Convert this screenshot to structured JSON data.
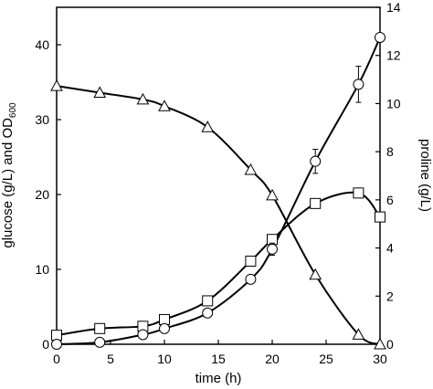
{
  "chart_data": {
    "type": "line",
    "x": [
      0,
      4,
      8,
      10,
      14,
      18,
      20,
      24,
      28,
      30
    ],
    "xlabel": "time (h)",
    "xlim": [
      0,
      30
    ],
    "xticks": [
      0,
      5,
      10,
      15,
      20,
      25,
      30
    ],
    "ylabel_left_main": "glucose (g/L) and OD",
    "ylabel_left_sub": "600",
    "ylim_left": [
      0,
      45
    ],
    "yticks_left": [
      0,
      10,
      20,
      30,
      40
    ],
    "ylabel_right": "proline (g/L)",
    "ylim_right": [
      0,
      14
    ],
    "yticks_right": [
      0,
      2,
      4,
      6,
      8,
      10,
      12,
      14
    ],
    "grid": false,
    "legend": "none",
    "series": [
      {
        "marker": "triangle",
        "axis": "left",
        "x": [
          0,
          4,
          8,
          10,
          14,
          18,
          20,
          24,
          28,
          30
        ],
        "values": [
          34.5,
          33.6,
          32.7,
          31.8,
          29.0,
          23.3,
          19.9,
          9.3,
          1.3,
          0.0
        ]
      },
      {
        "marker": "square",
        "axis": "left",
        "x": [
          0,
          4,
          8,
          10,
          14,
          18,
          20,
          24,
          28,
          30
        ],
        "values": [
          1.2,
          2.1,
          2.4,
          3.3,
          5.8,
          11.1,
          14.0,
          18.8,
          20.2,
          17.0
        ]
      },
      {
        "marker": "circle",
        "axis": "right",
        "x": [
          0,
          4,
          8,
          10,
          14,
          18,
          20,
          24,
          28,
          30
        ],
        "values": [
          0.0,
          0.08,
          0.4,
          0.65,
          1.3,
          2.7,
          3.95,
          7.6,
          10.8,
          12.75
        ],
        "errors": [
          0,
          0,
          0,
          0,
          0,
          0.15,
          0.25,
          0.5,
          0.75,
          0
        ]
      }
    ]
  }
}
